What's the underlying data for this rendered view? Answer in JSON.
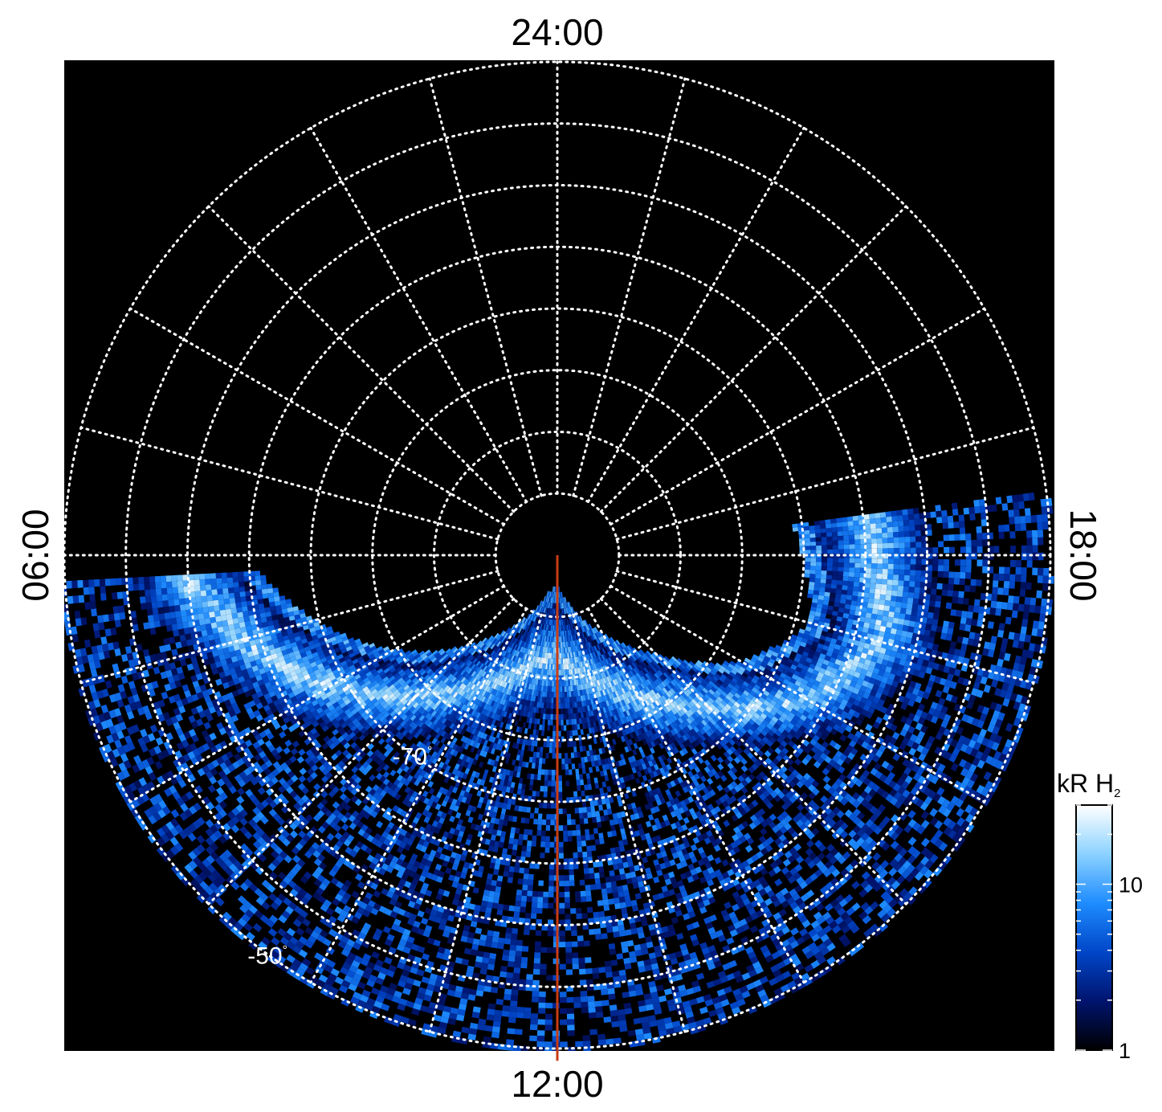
{
  "chart_data": {
    "type": "heatmap",
    "projection": "polar",
    "hemisphere": "south",
    "title": "",
    "local_time_labels": {
      "top": "24:00",
      "bottom": "12:00",
      "left": "06:00",
      "right": "18:00"
    },
    "latitude_labels": [
      {
        "value": -70,
        "text": "-70",
        "unit": "°"
      },
      {
        "value": -50,
        "text": "-50",
        "unit": "°"
      }
    ],
    "latitude_grid": [
      -85,
      -80,
      -75,
      -70,
      -65,
      -60,
      -55,
      -50
    ],
    "local_time_grid_hours": [
      0,
      1,
      2,
      3,
      4,
      5,
      6,
      7,
      8,
      9,
      10,
      11,
      12,
      13,
      14,
      15,
      16,
      17,
      18,
      19,
      20,
      21,
      22,
      23
    ],
    "grid": true,
    "colorbar": {
      "label": "kR H",
      "label_subscript": "2",
      "scale": "log",
      "range": [
        1,
        30
      ],
      "tick_labels": [
        {
          "value": 10,
          "text": "10"
        },
        {
          "value": 1,
          "text": "1"
        }
      ],
      "colors": [
        "#000000",
        "#00146e",
        "#0046c8",
        "#1e8cff",
        "#8cd2ff",
        "#ffffff"
      ]
    },
    "highlight_meridian": {
      "local_time_hours": 12,
      "color": "#c83c14"
    },
    "auroral_oval": {
      "peak_colatitude_deg_by_local_time": [
        {
          "lt": 5.5,
          "colat": 25
        },
        {
          "lt": 7,
          "colat": 27
        },
        {
          "lt": 8,
          "colat": 23
        },
        {
          "lt": 9,
          "colat": 17
        },
        {
          "lt": 10,
          "colat": 13
        },
        {
          "lt": 11,
          "colat": 10
        },
        {
          "lt": 12,
          "colat": 8
        },
        {
          "lt": 13,
          "colat": 9
        },
        {
          "lt": 14,
          "colat": 12
        },
        {
          "lt": 15,
          "colat": 16
        },
        {
          "lt": 16,
          "colat": 21
        },
        {
          "lt": 17,
          "colat": 26
        },
        {
          "lt": 17.8,
          "colat": 30
        }
      ]
    }
  }
}
